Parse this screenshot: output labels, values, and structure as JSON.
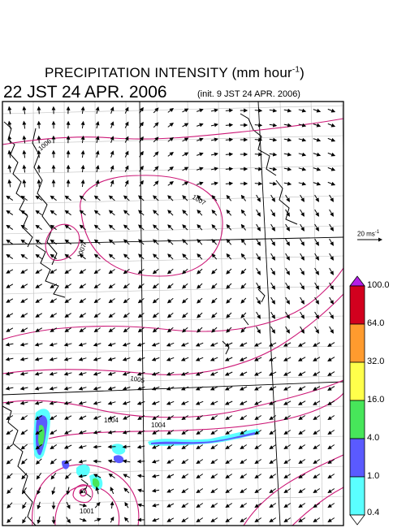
{
  "title": {
    "main": "PRECIPITATION INTENSITY (mm hour",
    "unit_sup": "-1",
    "unit_close": ")",
    "datetime": "22 JST 24 APR. 2006",
    "init": "(init. 9 JST 24 APR. 2006)"
  },
  "wind_scale": {
    "label": "20 ms",
    "sup": "-1"
  },
  "legend": {
    "levels": [
      "100.0",
      "64.0",
      "32.0",
      "16.0",
      "4.0",
      "1.0",
      "0.4"
    ],
    "colors": [
      "#d2001e",
      "#ff9b2e",
      "#ffff4b",
      "#47e65a",
      "#5a5aff",
      "#5affff"
    ],
    "over_color": "#b41ee6",
    "under_color": "#ffffff"
  },
  "isobars": {
    "color": "#cc1877",
    "labels": [
      "1006",
      "1007",
      "1007",
      "1005",
      "1004",
      "1004",
      "1001"
    ]
  }
}
